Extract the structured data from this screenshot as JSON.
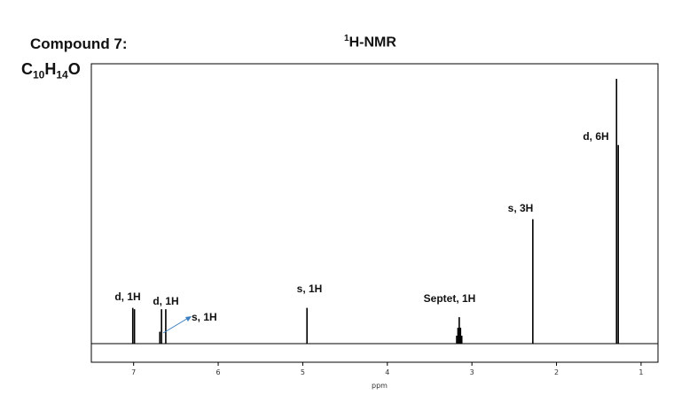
{
  "compound": {
    "title": "Compound 7:",
    "formula_parts": [
      {
        "text": "C",
        "sub": "10"
      },
      {
        "text": "H",
        "sub": "14"
      },
      {
        "text": "O",
        "sub": ""
      }
    ]
  },
  "spectrum_title": {
    "sup": "1",
    "text": "H-NMR"
  },
  "chart_data": {
    "type": "line",
    "title": "1H-NMR",
    "xlabel": "ppm",
    "ylabel": "",
    "xlim": [
      7.5,
      0.8
    ],
    "ylim": [
      0,
      1.0
    ],
    "x_reversed": true,
    "x_ticks": [
      7,
      6,
      5,
      4,
      3,
      2,
      1
    ],
    "grid": false,
    "peaks": [
      {
        "ppm": 7.01,
        "height": 0.135,
        "label": "d, 1H"
      },
      {
        "ppm": 6.99,
        "height": 0.13
      },
      {
        "ppm": 6.67,
        "height": 0.13,
        "label": "d, 1H"
      },
      {
        "ppm": 6.62,
        "height": 0.13
      },
      {
        "ppm": 6.69,
        "height": 0.045,
        "label": "s, 1H",
        "label_arrow": true
      },
      {
        "ppm": 4.95,
        "height": 0.135,
        "label": "s, 1H"
      },
      {
        "ppm": 3.18,
        "height": 0.03,
        "label": "Septet, 1H"
      },
      {
        "ppm": 3.165,
        "height": 0.06
      },
      {
        "ppm": 3.15,
        "height": 0.1
      },
      {
        "ppm": 3.135,
        "height": 0.06
      },
      {
        "ppm": 3.12,
        "height": 0.03
      },
      {
        "ppm": 2.28,
        "height": 0.47,
        "label": "s, 3H"
      },
      {
        "ppm": 1.29,
        "height": 1.0,
        "label": "d, 6H"
      },
      {
        "ppm": 1.27,
        "height": 0.75
      }
    ],
    "annotations": [
      "d, 1H",
      "d, 1H",
      "s, 1H",
      "s, 1H",
      "Septet, 1H",
      "s, 3H",
      "d, 6H"
    ]
  },
  "colors": {
    "line": "#000000",
    "arrow": "#3a7fc1",
    "frame": "#000000"
  }
}
